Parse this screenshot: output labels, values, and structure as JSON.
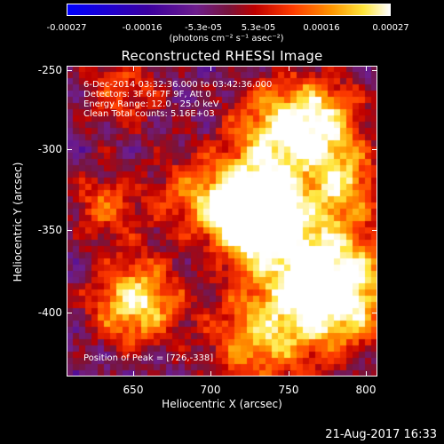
{
  "colorbar": {
    "ticks": [
      "-0.00027",
      "-0.00016",
      "-5.3e-05",
      "5.3e-05",
      "0.00016",
      "0.00027"
    ],
    "units": "(photons cm⁻² s⁻¹ asec⁻²)"
  },
  "title": "Reconstructed RHESSI Image",
  "info": {
    "time_range": "6-Dec-2014 03:32:36.000 to 03:42:36.000",
    "detectors": "Detectors: 3F 6F 7F 9F, Att 0",
    "energy": "Energy Range: 12.0 - 25.0 keV",
    "clean": "Clean     Total counts: 5.16E+03",
    "peak": "Position of Peak = [726,-338]"
  },
  "axes": {
    "x_label": "Heliocentric X (arcsec)",
    "y_label": "Heliocentric Y (arcsec)",
    "x_ticks": [
      "650",
      "700",
      "750",
      "800"
    ],
    "y_ticks": [
      "-250",
      "-300",
      "-350",
      "-400"
    ]
  },
  "footer": {
    "date": "21-Aug-2017 16:33"
  }
}
